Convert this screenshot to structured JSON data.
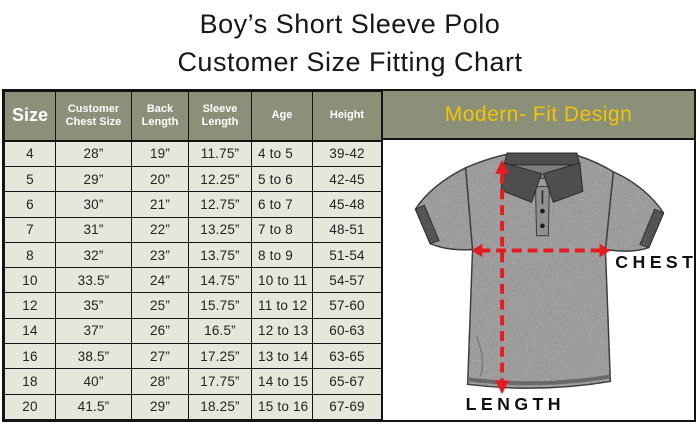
{
  "title": {
    "line1": "Boy’s Short Sleeve Polo",
    "line2": "Customer Size Fitting Chart"
  },
  "table": {
    "headers": [
      "Size",
      "Customer Chest Size",
      "Back Length",
      "Sleeve Length",
      "Age",
      "Height"
    ],
    "rows": [
      [
        "4",
        "28”",
        "19”",
        "11.75”",
        "4 to 5",
        "39-42"
      ],
      [
        "5",
        "29”",
        "20”",
        "12.25”",
        "5 to 6",
        "42-45"
      ],
      [
        "6",
        "30”",
        "21”",
        "12.75”",
        "6 to 7",
        "45-48"
      ],
      [
        "7",
        "31”",
        "22”",
        "13.25”",
        "7 to 8",
        "48-51"
      ],
      [
        "8",
        "32”",
        "23”",
        "13.75”",
        "8 to 9",
        "51-54"
      ],
      [
        "10",
        "33.5”",
        "24”",
        "14.75”",
        "10 to 11",
        "54-57"
      ],
      [
        "12",
        "35”",
        "25”",
        "15.75”",
        "11 to 12",
        "57-60"
      ],
      [
        "14",
        "37”",
        "26”",
        "16.5”",
        "12 to 13",
        "60-63"
      ],
      [
        "16",
        "38.5”",
        "27”",
        "17.25”",
        "13 to 14",
        "63-65"
      ],
      [
        "18",
        "40”",
        "28”",
        "17.75”",
        "14 to 15",
        "65-67"
      ],
      [
        "20",
        "41.5”",
        "29”",
        "18.25”",
        "15 to 16",
        "67-69"
      ]
    ]
  },
  "panel": {
    "header": "Modern- Fit Design",
    "chest_label": "CHEST",
    "length_label": "LENGTH"
  },
  "colors": {
    "header_bg": "#8B9078",
    "cell_bg": "#E3E8DB",
    "accent_yellow": "#F2C400",
    "arrow_red": "#E51B22",
    "shirt_gray": "#9A9A9A",
    "collar_gray": "#4E4E4E",
    "border_black": "#141414"
  }
}
